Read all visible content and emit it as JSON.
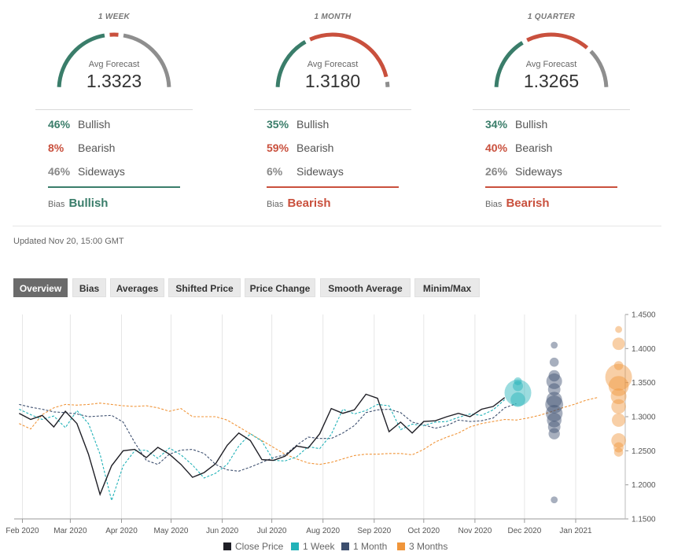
{
  "colors": {
    "bullish": "#3a7d6a",
    "bearish": "#c9503d",
    "sideways": "#8e8e8e",
    "close": "#1f1f26",
    "week": "#22b2b8",
    "month": "#3c4e6e",
    "quarter": "#f0953a"
  },
  "panels": [
    {
      "period": "1 WEEK",
      "avg_label": "Avg Forecast",
      "avg_value": "1.3323",
      "bullish_pct": "46%",
      "bullish_label": "Bullish",
      "bearish_pct": "8%",
      "bearish_label": "Bearish",
      "sideways_pct": "46%",
      "sideways_label": "Sideways",
      "bias_label": "Bias",
      "bias_value": "Bullish",
      "gauge": {
        "bullish": 0.46,
        "bearish": 0.08,
        "sideways": 0.46
      }
    },
    {
      "period": "1 MONTH",
      "avg_label": "Avg Forecast",
      "avg_value": "1.3180",
      "bullish_pct": "35%",
      "bullish_label": "Bullish",
      "bearish_pct": "59%",
      "bearish_label": "Bearish",
      "sideways_pct": "6%",
      "sideways_label": "Sideways",
      "bias_label": "Bias",
      "bias_value": "Bearish",
      "gauge": {
        "bullish": 0.35,
        "bearish": 0.59,
        "sideways": 0.06
      }
    },
    {
      "period": "1 QUARTER",
      "avg_label": "Avg Forecast",
      "avg_value": "1.3265",
      "bullish_pct": "34%",
      "bullish_label": "Bullish",
      "bearish_pct": "40%",
      "bearish_label": "Bearish",
      "sideways_pct": "26%",
      "sideways_label": "Sideways",
      "bias_label": "Bias",
      "bias_value": "Bearish",
      "gauge": {
        "bullish": 0.34,
        "bearish": 0.4,
        "sideways": 0.26
      }
    }
  ],
  "updated": "Updated Nov 20, 15:00 GMT",
  "tabs": [
    "Overview",
    "Bias",
    "Averages",
    "Shifted Price",
    "Price Change",
    "Smooth Average",
    "Minim/Max"
  ],
  "active_tab": "Overview",
  "legend": [
    "Close Price",
    "1 Week",
    "1 Month",
    "3 Months"
  ],
  "chart_data": {
    "type": "line",
    "x_range": [
      "2020-01-27",
      "2021-01-31"
    ],
    "ylim": [
      1.15,
      1.45
    ],
    "y_ticks": [
      "1.4500",
      "1.4000",
      "1.3500",
      "1.3000",
      "1.2500",
      "1.2000",
      "1.1500"
    ],
    "x_ticks": [
      {
        "date": "2020-02-01",
        "label": "Feb 2020"
      },
      {
        "date": "2020-03-01",
        "label": "Mar 2020"
      },
      {
        "date": "2020-04-01",
        "label": "Apr 2020"
      },
      {
        "date": "2020-05-01",
        "label": "May 2020"
      },
      {
        "date": "2020-06-01",
        "label": "Jun 2020"
      },
      {
        "date": "2020-07-01",
        "label": "Jul 2020"
      },
      {
        "date": "2020-08-01",
        "label": "Aug 2020"
      },
      {
        "date": "2020-09-01",
        "label": "Sep 2020"
      },
      {
        "date": "2020-10-01",
        "label": "Oct 2020"
      },
      {
        "date": "2020-11-01",
        "label": "Nov 2020"
      },
      {
        "date": "2020-12-01",
        "label": "Dec 2020"
      },
      {
        "date": "2021-01-01",
        "label": "Jan 2021"
      }
    ],
    "series": [
      {
        "name": "Close Price",
        "style": "solid",
        "points": [
          [
            "2020-01-30",
            1.305
          ],
          [
            "2020-02-06",
            1.296
          ],
          [
            "2020-02-13",
            1.302
          ],
          [
            "2020-02-20",
            1.285
          ],
          [
            "2020-02-27",
            1.308
          ],
          [
            "2020-03-05",
            1.29
          ],
          [
            "2020-03-12",
            1.245
          ],
          [
            "2020-03-19",
            1.186
          ],
          [
            "2020-03-26",
            1.228
          ],
          [
            "2020-04-02",
            1.25
          ],
          [
            "2020-04-09",
            1.252
          ],
          [
            "2020-04-16",
            1.24
          ],
          [
            "2020-04-23",
            1.255
          ],
          [
            "2020-04-30",
            1.245
          ],
          [
            "2020-05-07",
            1.23
          ],
          [
            "2020-05-14",
            1.211
          ],
          [
            "2020-05-21",
            1.218
          ],
          [
            "2020-05-28",
            1.231
          ],
          [
            "2020-06-04",
            1.258
          ],
          [
            "2020-06-11",
            1.276
          ],
          [
            "2020-06-18",
            1.265
          ],
          [
            "2020-06-25",
            1.237
          ],
          [
            "2020-07-02",
            1.236
          ],
          [
            "2020-07-09",
            1.242
          ],
          [
            "2020-07-16",
            1.257
          ],
          [
            "2020-07-23",
            1.254
          ],
          [
            "2020-07-30",
            1.275
          ],
          [
            "2020-08-06",
            1.312
          ],
          [
            "2020-08-13",
            1.305
          ],
          [
            "2020-08-20",
            1.31
          ],
          [
            "2020-08-27",
            1.333
          ],
          [
            "2020-09-03",
            1.327
          ],
          [
            "2020-09-10",
            1.278
          ],
          [
            "2020-09-17",
            1.292
          ],
          [
            "2020-09-24",
            1.276
          ],
          [
            "2020-10-01",
            1.293
          ],
          [
            "2020-10-08",
            1.294
          ],
          [
            "2020-10-15",
            1.3
          ],
          [
            "2020-10-22",
            1.305
          ],
          [
            "2020-10-29",
            1.3
          ],
          [
            "2020-11-05",
            1.311
          ],
          [
            "2020-11-12",
            1.315
          ],
          [
            "2020-11-19",
            1.328
          ]
        ]
      },
      {
        "name": "1 Week",
        "style": "dashed",
        "points": [
          [
            "2020-01-30",
            1.311
          ],
          [
            "2020-02-06",
            1.303
          ],
          [
            "2020-02-13",
            1.296
          ],
          [
            "2020-02-20",
            1.301
          ],
          [
            "2020-02-27",
            1.284
          ],
          [
            "2020-03-05",
            1.309
          ],
          [
            "2020-03-12",
            1.29
          ],
          [
            "2020-03-19",
            1.245
          ],
          [
            "2020-03-26",
            1.177
          ],
          [
            "2020-04-02",
            1.228
          ],
          [
            "2020-04-09",
            1.25
          ],
          [
            "2020-04-16",
            1.251
          ],
          [
            "2020-04-23",
            1.239
          ],
          [
            "2020-04-30",
            1.254
          ],
          [
            "2020-05-07",
            1.244
          ],
          [
            "2020-05-14",
            1.229
          ],
          [
            "2020-05-21",
            1.21
          ],
          [
            "2020-05-28",
            1.217
          ],
          [
            "2020-06-04",
            1.23
          ],
          [
            "2020-06-11",
            1.257
          ],
          [
            "2020-06-18",
            1.275
          ],
          [
            "2020-06-25",
            1.264
          ],
          [
            "2020-07-02",
            1.236
          ],
          [
            "2020-07-09",
            1.235
          ],
          [
            "2020-07-16",
            1.241
          ],
          [
            "2020-07-23",
            1.256
          ],
          [
            "2020-07-30",
            1.253
          ],
          [
            "2020-08-06",
            1.274
          ],
          [
            "2020-08-13",
            1.311
          ],
          [
            "2020-08-20",
            1.304
          ],
          [
            "2020-08-27",
            1.309
          ],
          [
            "2020-09-03",
            1.318
          ],
          [
            "2020-09-10",
            1.316
          ],
          [
            "2020-09-17",
            1.281
          ],
          [
            "2020-09-24",
            1.289
          ],
          [
            "2020-10-01",
            1.287
          ],
          [
            "2020-10-08",
            1.292
          ],
          [
            "2020-10-15",
            1.293
          ],
          [
            "2020-10-22",
            1.299
          ],
          [
            "2020-10-29",
            1.304
          ],
          [
            "2020-11-05",
            1.302
          ],
          [
            "2020-11-12",
            1.31
          ],
          [
            "2020-11-19",
            1.325
          ]
        ]
      },
      {
        "name": "1 Month",
        "style": "dashed",
        "points": [
          [
            "2020-01-30",
            1.318
          ],
          [
            "2020-02-06",
            1.314
          ],
          [
            "2020-02-13",
            1.311
          ],
          [
            "2020-02-20",
            1.307
          ],
          [
            "2020-02-27",
            1.306
          ],
          [
            "2020-03-05",
            1.304
          ],
          [
            "2020-03-12",
            1.3
          ],
          [
            "2020-03-19",
            1.301
          ],
          [
            "2020-03-26",
            1.302
          ],
          [
            "2020-04-02",
            1.292
          ],
          [
            "2020-04-09",
            1.262
          ],
          [
            "2020-04-16",
            1.236
          ],
          [
            "2020-04-23",
            1.23
          ],
          [
            "2020-04-30",
            1.245
          ],
          [
            "2020-05-07",
            1.251
          ],
          [
            "2020-05-14",
            1.252
          ],
          [
            "2020-05-21",
            1.246
          ],
          [
            "2020-05-28",
            1.23
          ],
          [
            "2020-06-04",
            1.222
          ],
          [
            "2020-06-11",
            1.22
          ],
          [
            "2020-06-18",
            1.226
          ],
          [
            "2020-06-25",
            1.233
          ],
          [
            "2020-07-02",
            1.24
          ],
          [
            "2020-07-09",
            1.244
          ],
          [
            "2020-07-16",
            1.258
          ],
          [
            "2020-07-23",
            1.27
          ],
          [
            "2020-07-30",
            1.268
          ],
          [
            "2020-08-06",
            1.268
          ],
          [
            "2020-08-13",
            1.276
          ],
          [
            "2020-08-20",
            1.287
          ],
          [
            "2020-08-27",
            1.306
          ],
          [
            "2020-09-03",
            1.31
          ],
          [
            "2020-09-10",
            1.311
          ],
          [
            "2020-09-17",
            1.306
          ],
          [
            "2020-09-24",
            1.292
          ],
          [
            "2020-10-01",
            1.288
          ],
          [
            "2020-10-08",
            1.283
          ],
          [
            "2020-10-15",
            1.287
          ],
          [
            "2020-10-22",
            1.295
          ],
          [
            "2020-10-29",
            1.293
          ],
          [
            "2020-11-05",
            1.294
          ],
          [
            "2020-11-12",
            1.298
          ],
          [
            "2020-11-19",
            1.313
          ],
          [
            "2020-11-26",
            1.319
          ]
        ]
      },
      {
        "name": "3 Months",
        "style": "dashed",
        "points": [
          [
            "2020-01-30",
            1.29
          ],
          [
            "2020-02-06",
            1.282
          ],
          [
            "2020-02-13",
            1.303
          ],
          [
            "2020-02-20",
            1.313
          ],
          [
            "2020-02-27",
            1.318
          ],
          [
            "2020-03-05",
            1.317
          ],
          [
            "2020-03-12",
            1.318
          ],
          [
            "2020-03-19",
            1.32
          ],
          [
            "2020-03-26",
            1.318
          ],
          [
            "2020-04-02",
            1.316
          ],
          [
            "2020-04-09",
            1.315
          ],
          [
            "2020-04-16",
            1.316
          ],
          [
            "2020-04-23",
            1.313
          ],
          [
            "2020-04-30",
            1.308
          ],
          [
            "2020-05-07",
            1.312
          ],
          [
            "2020-05-14",
            1.3
          ],
          [
            "2020-05-21",
            1.3
          ],
          [
            "2020-05-28",
            1.3
          ],
          [
            "2020-06-04",
            1.295
          ],
          [
            "2020-06-11",
            1.285
          ],
          [
            "2020-06-18",
            1.275
          ],
          [
            "2020-06-25",
            1.265
          ],
          [
            "2020-07-02",
            1.255
          ],
          [
            "2020-07-09",
            1.245
          ],
          [
            "2020-07-16",
            1.238
          ],
          [
            "2020-07-23",
            1.232
          ],
          [
            "2020-07-30",
            1.23
          ],
          [
            "2020-08-06",
            1.233
          ],
          [
            "2020-08-13",
            1.238
          ],
          [
            "2020-08-20",
            1.243
          ],
          [
            "2020-08-27",
            1.245
          ],
          [
            "2020-09-03",
            1.245
          ],
          [
            "2020-09-10",
            1.246
          ],
          [
            "2020-09-17",
            1.246
          ],
          [
            "2020-09-24",
            1.244
          ],
          [
            "2020-10-01",
            1.252
          ],
          [
            "2020-10-08",
            1.263
          ],
          [
            "2020-10-15",
            1.27
          ],
          [
            "2020-10-22",
            1.276
          ],
          [
            "2020-10-29",
            1.285
          ],
          [
            "2020-11-05",
            1.29
          ],
          [
            "2020-11-12",
            1.293
          ],
          [
            "2020-11-19",
            1.296
          ],
          [
            "2020-11-26",
            1.295
          ],
          [
            "2020-12-03",
            1.298
          ],
          [
            "2020-12-10",
            1.302
          ],
          [
            "2020-12-17",
            1.307
          ],
          [
            "2020-12-24",
            1.313
          ],
          [
            "2020-12-31",
            1.318
          ],
          [
            "2021-01-07",
            1.324
          ],
          [
            "2021-01-14",
            1.328
          ]
        ]
      }
    ],
    "forecast_bubbles": [
      {
        "series": "1 Week",
        "date": "2020-11-27",
        "points": [
          [
            1.352,
            0.15
          ],
          [
            1.345,
            0.25
          ],
          [
            1.335,
            1.0
          ],
          [
            1.325,
            0.45
          ]
        ]
      },
      {
        "series": "1 Month",
        "date": "2020-12-19",
        "points": [
          [
            1.405,
            0.1
          ],
          [
            1.38,
            0.2
          ],
          [
            1.36,
            0.3
          ],
          [
            1.352,
            0.5
          ],
          [
            1.34,
            0.35
          ],
          [
            1.325,
            0.5
          ],
          [
            1.318,
            0.6
          ],
          [
            1.305,
            0.55
          ],
          [
            1.295,
            0.45
          ],
          [
            1.285,
            0.35
          ],
          [
            1.275,
            0.3
          ],
          [
            1.178,
            0.1
          ]
        ]
      },
      {
        "series": "3 Months",
        "date": "2021-01-27",
        "points": [
          [
            1.428,
            0.1
          ],
          [
            1.407,
            0.35
          ],
          [
            1.375,
            0.2
          ],
          [
            1.358,
            1.0
          ],
          [
            1.345,
            0.7
          ],
          [
            1.33,
            0.5
          ],
          [
            1.315,
            0.45
          ],
          [
            1.295,
            0.4
          ],
          [
            1.265,
            0.45
          ],
          [
            1.255,
            0.25
          ],
          [
            1.248,
            0.2
          ]
        ]
      }
    ]
  }
}
